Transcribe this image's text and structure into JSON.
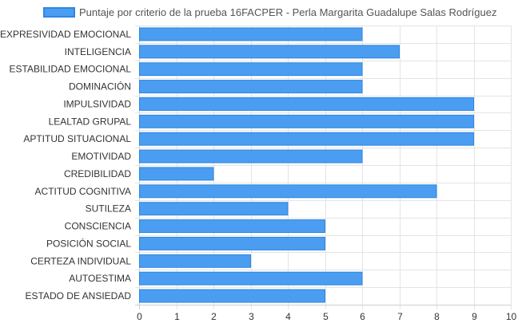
{
  "chart_data": {
    "type": "bar",
    "orientation": "horizontal",
    "legend": {
      "label": "Puntaje por criterio de la prueba 16FACPER - Perla Margarita Guadalupe Salas Rodríguez",
      "placement": "top-center"
    },
    "categories": [
      "EXPRESIVIDAD EMOCIONAL",
      "INTELIGENCIA",
      "ESTABILIDAD EMOCIONAL",
      "DOMINACIÓN",
      "IMPULSIVIDAD",
      "LEALTAD GRUPAL",
      "APTITUD SITUACIONAL",
      "EMOTIVIDAD",
      "CREDIBILIDAD",
      "ACTITUD COGNITIVA",
      "SUTILEZA",
      "CONSCIENCIA",
      "POSICIÓN SOCIAL",
      "CERTEZA INDIVIDUAL",
      "AUTOESTIMA",
      "ESTADO DE ANSIEDAD"
    ],
    "series": [
      {
        "name": "Puntaje por criterio de la prueba 16FACPER - Perla Margarita Guadalupe Salas Rodríguez",
        "values": [
          6,
          7,
          6,
          6,
          9,
          9,
          9,
          6,
          2,
          8,
          4,
          5,
          5,
          3,
          6,
          5
        ]
      }
    ],
    "xlim": [
      0,
      10
    ],
    "xticks": [
      "0",
      "1",
      "2",
      "3",
      "4",
      "5",
      "6",
      "7",
      "8",
      "9",
      "10"
    ],
    "grid": true,
    "colors": {
      "bar_fill": "#4a9df0",
      "bar_stroke": "#2f86e0"
    }
  }
}
